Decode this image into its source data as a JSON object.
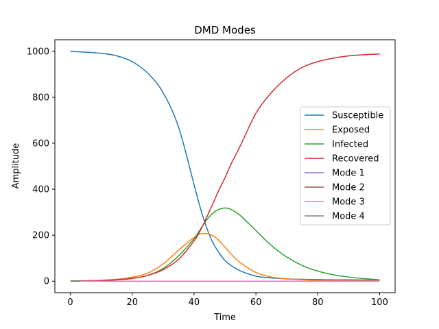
{
  "chart_data": {
    "type": "line",
    "title": "DMD Modes",
    "xlabel": "Time",
    "ylabel": "Amplitude",
    "xlim": [
      -5,
      105
    ],
    "ylim": [
      -50,
      1050
    ],
    "xticks": [
      0,
      20,
      40,
      60,
      80,
      100
    ],
    "yticks": [
      0,
      200,
      400,
      600,
      800,
      1000
    ],
    "grid": false,
    "legend_position": "center-right",
    "x": [
      0,
      5,
      10,
      15,
      20,
      25,
      30,
      35,
      40,
      42,
      44,
      46,
      48,
      50,
      52,
      55,
      60,
      65,
      70,
      75,
      80,
      85,
      90,
      95,
      100
    ],
    "series": [
      {
        "name": "Susceptible",
        "color": "#1f77b4",
        "values": [
          999,
          996,
          991,
          980,
          955,
          905,
          820,
          670,
          420,
          320,
          235,
          170,
          125,
          90,
          68,
          45,
          22,
          14,
          10,
          8,
          7,
          6,
          6,
          5,
          5
        ]
      },
      {
        "name": "Exposed",
        "color": "#ff7f0e",
        "values": [
          1,
          2,
          4,
          8,
          17,
          35,
          75,
          135,
          190,
          205,
          207,
          198,
          178,
          148,
          118,
          80,
          38,
          18,
          10,
          6,
          4,
          3,
          2,
          2,
          1
        ]
      },
      {
        "name": "Infected",
        "color": "#2ca02c",
        "values": [
          1,
          2,
          3,
          6,
          12,
          25,
          55,
          110,
          185,
          225,
          265,
          295,
          312,
          318,
          312,
          285,
          220,
          155,
          105,
          68,
          44,
          28,
          18,
          11,
          6
        ]
      },
      {
        "name": "Recovered",
        "color": "#d62728",
        "values": [
          0,
          1,
          3,
          6,
          12,
          25,
          50,
          95,
          175,
          220,
          275,
          335,
          395,
          450,
          510,
          590,
          730,
          820,
          885,
          930,
          955,
          970,
          980,
          985,
          988
        ]
      },
      {
        "name": "Mode 1",
        "color": "#9467bd",
        "values": [
          0,
          0,
          0,
          0,
          0,
          0,
          0,
          0,
          0,
          0,
          0,
          0,
          0,
          0,
          0,
          0,
          0,
          0,
          0,
          0,
          0,
          0,
          0,
          0,
          0
        ]
      },
      {
        "name": "Mode 2",
        "color": "#8c564b",
        "values": [
          0,
          0,
          0,
          0,
          0,
          0,
          0,
          0,
          0,
          0,
          0,
          0,
          0,
          0,
          0,
          0,
          0,
          0,
          0,
          0,
          0,
          0,
          0,
          0,
          0
        ]
      },
      {
        "name": "Mode 3",
        "color": "#e377c2",
        "values": [
          0,
          0,
          0,
          0,
          0,
          0,
          0,
          0,
          0,
          0,
          0,
          0,
          0,
          0,
          0,
          0,
          0,
          0,
          0,
          0,
          0,
          0,
          0,
          0,
          0
        ]
      },
      {
        "name": "Mode 4",
        "color": "#7f7f7f",
        "x": [
          0,
          1,
          2,
          3
        ],
        "values": [
          0,
          0,
          0,
          0
        ]
      }
    ]
  }
}
